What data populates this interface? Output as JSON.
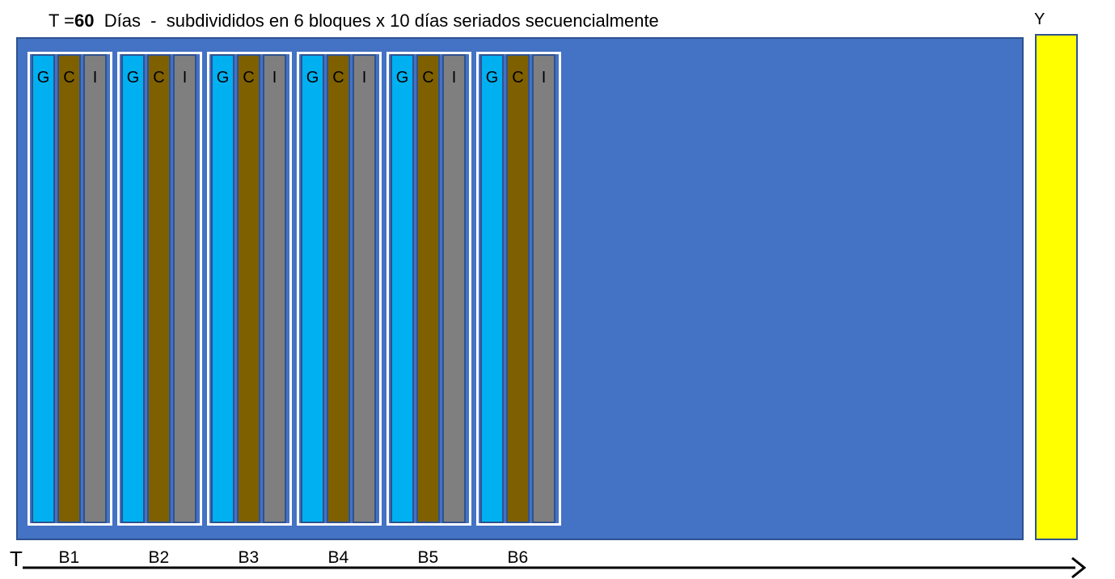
{
  "title": {
    "prefix": "T =",
    "value": "60",
    "suffix": "  Días  -  subdivididos en 6 bloques x 10 días seriados secuencialmente"
  },
  "y_label": "Y",
  "axis_label": "T",
  "bar_letters": [
    "G",
    "C",
    "I"
  ],
  "colors": {
    "panel": "#4472c4",
    "panel_border": "#2f528f",
    "bar_g": "#00b0f0",
    "bar_c": "#7f6000",
    "bar_i": "#7f7f7f",
    "y_panel": "#ffff00"
  },
  "blocks": [
    {
      "label": "B1"
    },
    {
      "label": "B2"
    },
    {
      "label": "B3"
    },
    {
      "label": "B4"
    },
    {
      "label": "B5"
    },
    {
      "label": "B6"
    }
  ]
}
